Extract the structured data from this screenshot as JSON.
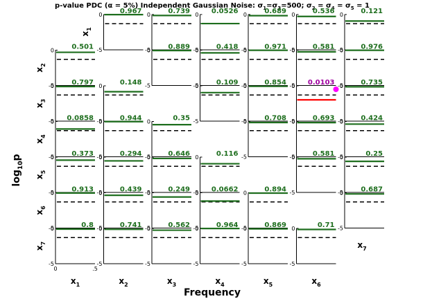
{
  "chart_data": {
    "type": "line",
    "title_parts": {
      "t1": "p-value PDC (",
      "t2": "α",
      "t3": " = 5%)  Independent Gaussian Noise: ",
      "t4": "σ",
      "t5": "1",
      "t6": "=",
      "t7": "σ",
      "t8": "3",
      "t9": "=500; ",
      "t10": "σ",
      "t11": "2",
      "t12": " = ",
      "t13": "σ",
      "t14": "4",
      "t15": " = ",
      "t16": "σ",
      "t17": "5",
      "t18": " = 1"
    },
    "ylabel": {
      "base": "log",
      "sub": "10",
      "tail": "p"
    },
    "xlabel": "Frequency",
    "variables": [
      "x",
      "x",
      "x",
      "x",
      "x",
      "x",
      "x"
    ],
    "variable_indices": [
      "1",
      "2",
      "3",
      "4",
      "5",
      "6",
      "7"
    ],
    "ylim": [
      -5,
      0
    ],
    "xlim": [
      0,
      0.5
    ],
    "ytick_labels": [
      "0",
      "-5"
    ],
    "xtick_labels": [
      "0",
      ".5"
    ],
    "significance_level_log10": -1.301,
    "colors": {
      "not_significant": "#1e6e1e",
      "significant": "#ff0000",
      "significant_text": "#a000a0",
      "marker": "#ff00ff",
      "threshold": "#000000"
    },
    "pvalues": [
      [
        null,
        "0.967",
        "0.739",
        "0.0526",
        "0.689",
        "0.536",
        "0.121"
      ],
      [
        "0.501",
        null,
        "0.889",
        "0.418",
        "0.971",
        "0.581",
        "0.976"
      ],
      [
        "0.797",
        "0.148",
        null,
        "0.109",
        "0.854",
        "0.0103",
        "0.735"
      ],
      [
        "0.0858",
        "0.944",
        "0.35",
        null,
        "0.708",
        "0.693",
        "0.424"
      ],
      [
        "0.373",
        "0.294",
        "0.646",
        "0.116",
        null,
        "0.581",
        "0.25"
      ],
      [
        "0.913",
        "0.439",
        "0.249",
        "0.0662",
        "0.894",
        null,
        "0.687"
      ],
      [
        "0.8",
        "0.741",
        "0.562",
        "0.964",
        "0.869",
        "0.71",
        null
      ]
    ],
    "significant_cells": [
      [
        2,
        5
      ]
    ]
  }
}
